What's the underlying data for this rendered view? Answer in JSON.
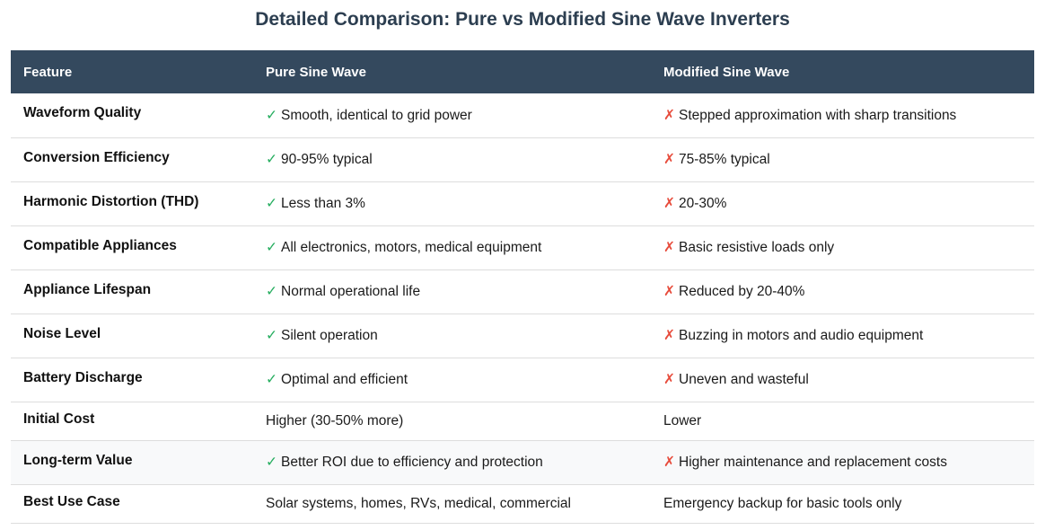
{
  "title": "Detailed Comparison: Pure vs Modified Sine Wave Inverters",
  "colors": {
    "header_bg": "#34495e",
    "title": "#2c3e50",
    "check": "#27ae60",
    "cross": "#e74c3c",
    "row_alt": "#f8f9fa"
  },
  "table": {
    "headers": [
      "Feature",
      "Pure Sine Wave",
      "Modified Sine Wave"
    ],
    "rows": [
      {
        "feature": "Waveform Quality",
        "pure_mark": "✓",
        "pure": "Smooth, identical to grid power",
        "mod_mark": "✗",
        "mod": "Stepped approximation with sharp transitions"
      },
      {
        "feature": "Conversion Efficiency",
        "pure_mark": "✓",
        "pure": "90-95% typical",
        "mod_mark": "✗",
        "mod": "75-85% typical"
      },
      {
        "feature": "Harmonic Distortion (THD)",
        "pure_mark": "✓",
        "pure": "Less than 3%",
        "mod_mark": "✗",
        "mod": "20-30%"
      },
      {
        "feature": "Compatible Appliances",
        "pure_mark": "✓",
        "pure": "All electronics, motors, medical equipment",
        "mod_mark": "✗",
        "mod": "Basic resistive loads only"
      },
      {
        "feature": "Appliance Lifespan",
        "pure_mark": "✓",
        "pure": "Normal operational life",
        "mod_mark": "✗",
        "mod": "Reduced by 20-40%"
      },
      {
        "feature": "Noise Level",
        "pure_mark": "✓",
        "pure": "Silent operation",
        "mod_mark": "✗",
        "mod": "Buzzing in motors and audio equipment"
      },
      {
        "feature": "Battery Discharge",
        "pure_mark": "✓",
        "pure": "Optimal and efficient",
        "mod_mark": "✗",
        "mod": "Uneven and wasteful"
      },
      {
        "feature": "Initial Cost",
        "pure": "Higher (30-50% more)",
        "mod": "Lower"
      },
      {
        "feature": "Long-term Value",
        "pure_mark": "✓",
        "pure": "Better ROI due to efficiency and protection",
        "mod_mark": "✗",
        "mod": "Higher maintenance and replacement costs"
      },
      {
        "feature": "Best Use Case",
        "pure": "Solar systems, homes, RVs, medical, commercial",
        "mod": "Emergency backup for basic tools only"
      }
    ]
  }
}
